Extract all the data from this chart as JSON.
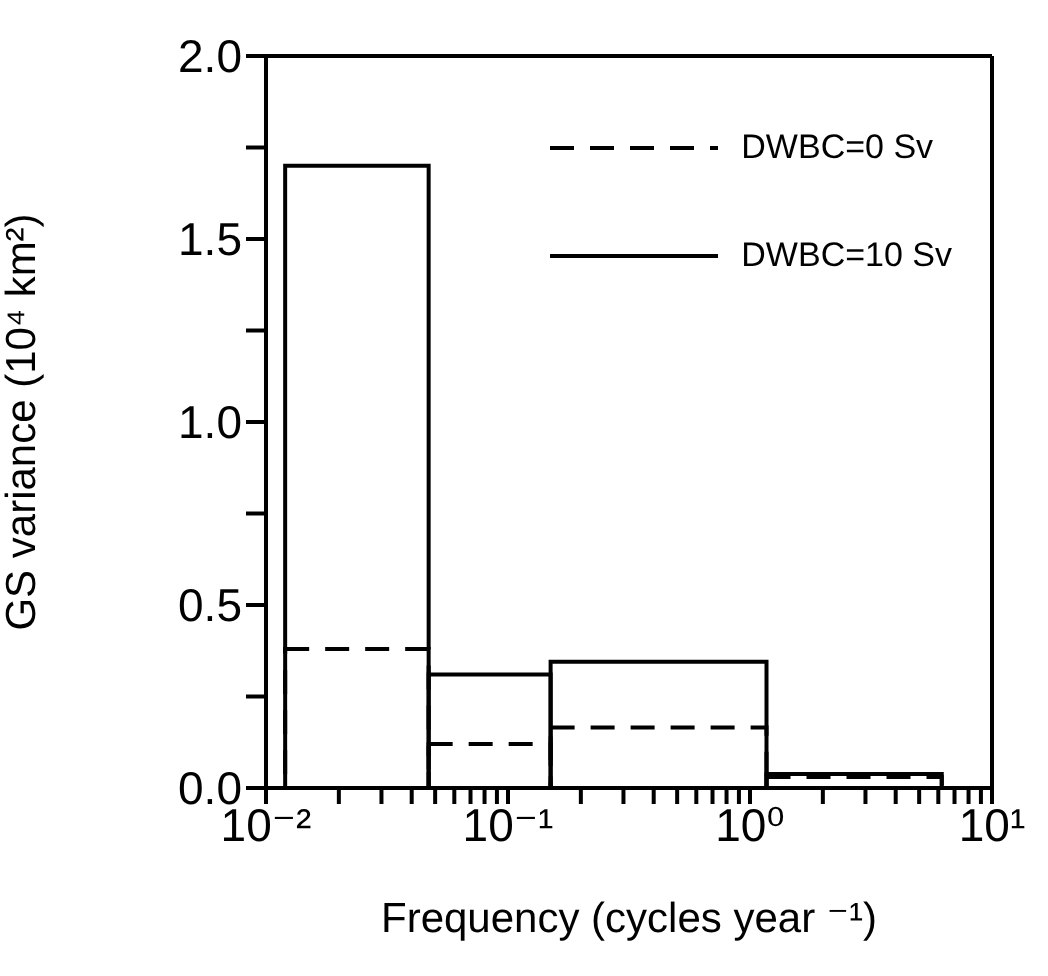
{
  "chart_data": {
    "type": "histogram",
    "xlabel": "Frequency (cycles year ⁻¹)",
    "ylabel": "GS variance (10⁴ km²)",
    "log": "x",
    "bins": [
      0.012,
      0.047,
      0.15,
      1.17,
      6.2
    ],
    "series": [
      {
        "name": "DWBC=0 Sv",
        "color": "#000000",
        "line_style": "dashed",
        "values": [
          0.38,
          0.12,
          0.165,
          0.03
        ]
      },
      {
        "name": "DWBC=10 Sv",
        "color": "#000000",
        "line_style": "solid",
        "values": [
          1.7,
          0.31,
          0.345,
          0.038
        ]
      }
    ],
    "xlim": [
      0.01,
      10
    ],
    "xticks": [
      {
        "value": 0.01,
        "label": "10⁻²"
      },
      {
        "value": 0.02,
        "label": null
      },
      {
        "value": 0.03,
        "label": null
      },
      {
        "value": 0.04,
        "label": null
      },
      {
        "value": 0.05,
        "label": null
      },
      {
        "value": 0.06,
        "label": null
      },
      {
        "value": 0.07,
        "label": null
      },
      {
        "value": 0.08,
        "label": null
      },
      {
        "value": 0.09,
        "label": null
      },
      {
        "value": 0.1,
        "label": "10⁻¹"
      },
      {
        "value": 0.2,
        "label": null
      },
      {
        "value": 0.3,
        "label": null
      },
      {
        "value": 0.4,
        "label": null
      },
      {
        "value": 0.5,
        "label": null
      },
      {
        "value": 0.6,
        "label": null
      },
      {
        "value": 0.7,
        "label": null
      },
      {
        "value": 0.8,
        "label": null
      },
      {
        "value": 0.9,
        "label": null
      },
      {
        "value": 1,
        "label": "10⁰"
      },
      {
        "value": 2,
        "label": null
      },
      {
        "value": 3,
        "label": null
      },
      {
        "value": 4,
        "label": null
      },
      {
        "value": 5,
        "label": null
      },
      {
        "value": 6,
        "label": null
      },
      {
        "value": 7,
        "label": null
      },
      {
        "value": 8,
        "label": null
      },
      {
        "value": 9,
        "label": null
      },
      {
        "value": 10,
        "label": "10¹"
      }
    ],
    "ylim": [
      0,
      2
    ],
    "yticks": [
      {
        "value": 0,
        "label": "0.0"
      },
      {
        "value": 0.25,
        "label": null
      },
      {
        "value": 0.5,
        "label": "0.5"
      },
      {
        "value": 0.75,
        "label": null
      },
      {
        "value": 1,
        "label": "1.0"
      },
      {
        "value": 1.25,
        "label": null
      },
      {
        "value": 1.5,
        "label": "1.5"
      },
      {
        "value": 1.75,
        "label": null
      },
      {
        "value": 2,
        "label": "2.0"
      }
    ],
    "grid": false,
    "legend": "top right"
  }
}
